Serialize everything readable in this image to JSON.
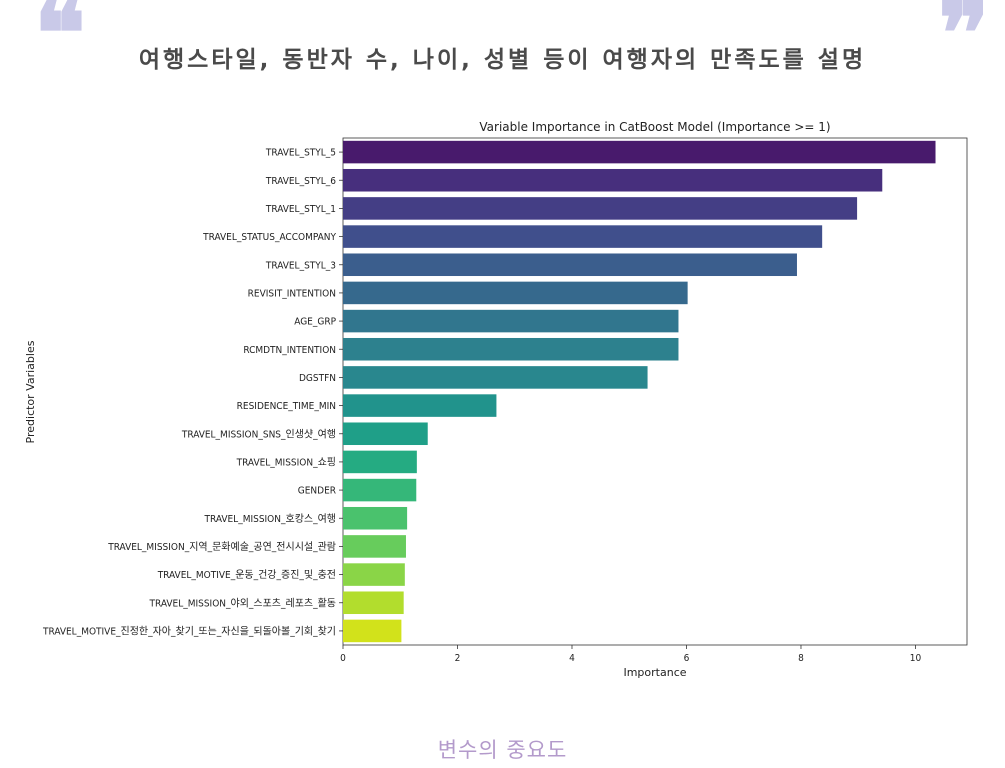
{
  "page": {
    "headline": "여행스타일, 동반자 수, 나이, 성별 등이 여행자의 만족도를 설명",
    "caption": "변수의 중요도",
    "quote_open": "❝",
    "quote_close": "❞",
    "quote_color": "#c9c9e8",
    "caption_color": "#b39acb"
  },
  "chart_data": {
    "type": "bar",
    "orientation": "horizontal",
    "title": "Variable Importance in CatBoost Model (Importance >= 1)",
    "xlabel": "Importance",
    "ylabel": "Predictor Variables",
    "xlim": [
      0,
      10.9
    ],
    "xticks": [
      0,
      2,
      4,
      6,
      8,
      10
    ],
    "grid": false,
    "palette": "viridis",
    "categories": [
      "TRAVEL_STYL_5",
      "TRAVEL_STYL_6",
      "TRAVEL_STYL_1",
      "TRAVEL_STATUS_ACCOMPANY",
      "TRAVEL_STYL_3",
      "REVISIT_INTENTION",
      "AGE_GRP",
      "RCMDTN_INTENTION",
      "DGSTFN",
      "RESIDENCE_TIME_MIN",
      "TRAVEL_MISSION_SNS_인생샷_여행",
      "TRAVEL_MISSION_쇼핑",
      "GENDER",
      "TRAVEL_MISSION_호캉스_여행",
      "TRAVEL_MISSION_지역_문화예술_공연_전시시설_관람",
      "TRAVEL_MOTIVE_운동_건강_증진_및_충전",
      "TRAVEL_MISSION_야외_스포츠_레포츠_활동",
      "TRAVEL_MOTIVE_진정한_자아_찾기_또는_자신을_되돌아볼_기회_찾기"
    ],
    "values": [
      10.35,
      9.42,
      8.98,
      8.37,
      7.93,
      6.02,
      5.86,
      5.86,
      5.32,
      2.68,
      1.48,
      1.29,
      1.28,
      1.12,
      1.1,
      1.08,
      1.06,
      1.02
    ],
    "colors": [
      "#481a6c",
      "#472f7d",
      "#443e85",
      "#404f8c",
      "#3b5e8d",
      "#36698d",
      "#31768e",
      "#2d818e",
      "#29878e",
      "#21938c",
      "#1f9f88",
      "#25ab82",
      "#35b779",
      "#4ac26d",
      "#67cc5c",
      "#8ad547",
      "#b2dd2d",
      "#d2e21b"
    ]
  }
}
